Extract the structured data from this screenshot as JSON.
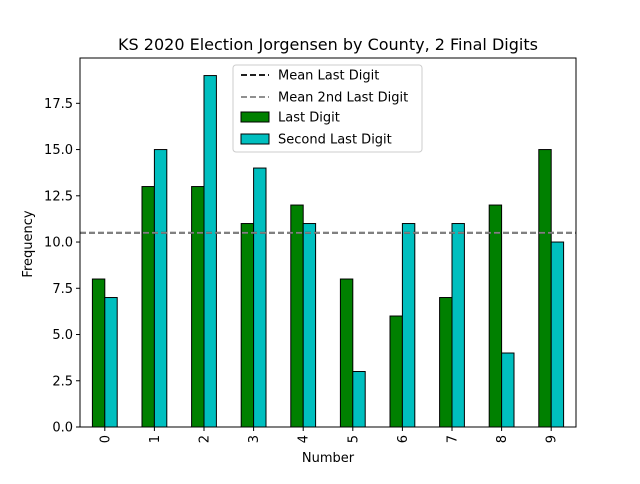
{
  "chart_data": {
    "type": "bar",
    "title": "KS 2020 Election Jorgensen by County, 2 Final Digits",
    "xlabel": "Number",
    "ylabel": "Frequency",
    "categories": [
      "0",
      "1",
      "2",
      "3",
      "4",
      "5",
      "6",
      "7",
      "8",
      "9"
    ],
    "series": [
      {
        "name": "Last Digit",
        "color": "#008000",
        "values": [
          8,
          13,
          13,
          11,
          12,
          8,
          6,
          7,
          12,
          15
        ]
      },
      {
        "name": "Second Last Digit",
        "color": "#00bfbf",
        "values": [
          7,
          15,
          19,
          14,
          11,
          3,
          11,
          11,
          4,
          10
        ]
      }
    ],
    "reference_lines": [
      {
        "name": "Mean Last Digit",
        "value": 10.5,
        "color": "#000000",
        "style": "dashed"
      },
      {
        "name": "Mean 2nd Last Digit",
        "value": 10.5,
        "color": "#808080",
        "style": "dashed"
      }
    ],
    "ylim": [
      0,
      19.95
    ],
    "yticks": [
      "0.0",
      "2.5",
      "5.0",
      "7.5",
      "10.0",
      "12.5",
      "15.0",
      "17.5"
    ],
    "grid": false,
    "legend_position": "top-center"
  }
}
